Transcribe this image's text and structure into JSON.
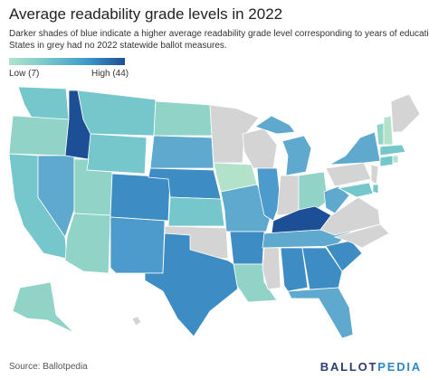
{
  "title": "Average readability grade levels in 2022",
  "subtitle_lines": [
    "Darker shades of blue indicate a higher average readability grade level corresponding to years of education.",
    "States in grey had no 2022 statewide ballot measures."
  ],
  "legend": {
    "low_label": "Low (7)",
    "high_label": "High (44)",
    "low": 7,
    "high": 44
  },
  "colors": {
    "low": "#b2e2ca",
    "mid_low": "#76c7cb",
    "mid": "#3e9ac9",
    "high": "#1c4f96",
    "no_data": "#d4d4d4",
    "title": "#222222"
  },
  "footer": {
    "source": "Source: Ballotpedia"
  },
  "brand": {
    "part1": "BALLOT",
    "part2": "PEDIA"
  }
}
